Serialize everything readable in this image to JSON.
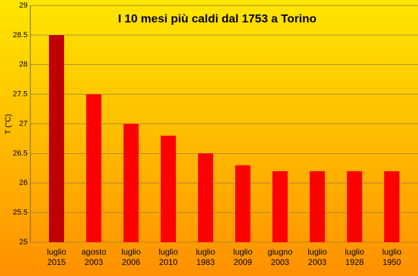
{
  "chart_data": {
    "type": "bar",
    "title": "I 10 mesi più caldi dal 1753 a Torino",
    "y_label": "T (°C)",
    "categories": [
      "luglio 2015",
      "agosto 2003",
      "luglio 2006",
      "luglio 2010",
      "luglio 1983",
      "luglio 2009",
      "giugno 2003",
      "luglio 2003",
      "luglio 1928",
      "luglio 1950"
    ],
    "values": [
      28.5,
      27.5,
      27,
      26.8,
      26.5,
      26.3,
      26.2,
      26.2,
      26.2,
      26.2
    ],
    "colors": [
      "#c00000",
      "#ff0000",
      "#ff0000",
      "#ff0000",
      "#ff0000",
      "#ff0000",
      "#ff0000",
      "#ff0000",
      "#ff0000",
      "#ff0000"
    ],
    "ylim": [
      25,
      29
    ],
    "yticks": [
      25,
      25.5,
      26,
      26.5,
      27,
      27.5,
      28,
      28.5,
      29
    ],
    "grid": true
  }
}
